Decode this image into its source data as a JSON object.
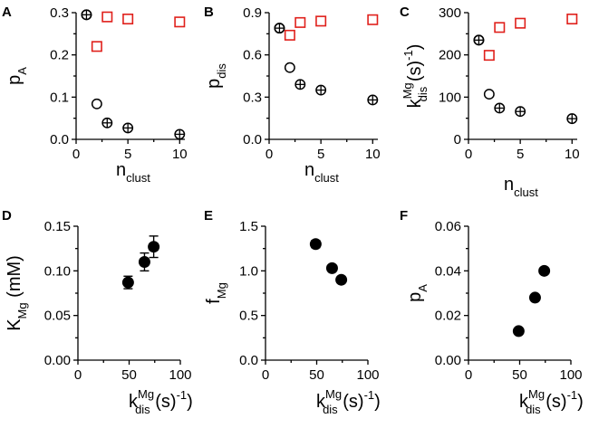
{
  "colors": {
    "black": "#000000",
    "red": "#e0201b"
  },
  "chart_data": [
    {
      "id": "A",
      "type": "scatter",
      "xlim": [
        0,
        10.5
      ],
      "ylim": [
        0,
        0.3
      ],
      "xticks": [
        "0",
        "5",
        "10"
      ],
      "xtick_values": [
        0,
        5,
        10
      ],
      "yticks": [
        "0.0",
        "0.1",
        "0.2",
        "0.3"
      ],
      "ytick_values": [
        0,
        0.1,
        0.2,
        0.3
      ],
      "xlabel": {
        "main": "n",
        "sub": "clust",
        "sup": "",
        "tail": ""
      },
      "ylabel": {
        "main": "p",
        "sub": "A",
        "sup": "",
        "tail": ""
      },
      "series": [
        {
          "name": "open circles",
          "marker": "circle-open",
          "color": "#000000",
          "x": [
            1,
            2
          ],
          "y": [
            0.295,
            0.084
          ]
        },
        {
          "name": "crossed circles",
          "marker": "circle-cross",
          "color": "#000000",
          "x": [
            1,
            3,
            5,
            10
          ],
          "y": [
            0.295,
            0.039,
            0.027,
            0.012
          ]
        },
        {
          "name": "red squares",
          "marker": "square-open",
          "color": "#e0201b",
          "x": [
            2,
            3,
            5,
            10
          ],
          "y": [
            0.22,
            0.29,
            0.285,
            0.278
          ]
        }
      ]
    },
    {
      "id": "B",
      "type": "scatter",
      "xlim": [
        0,
        10.5
      ],
      "ylim": [
        0,
        0.9
      ],
      "xticks": [
        "0",
        "5",
        "10"
      ],
      "xtick_values": [
        0,
        5,
        10
      ],
      "yticks": [
        "0.0",
        "0.3",
        "0.6",
        "0.9"
      ],
      "ytick_values": [
        0,
        0.3,
        0.6,
        0.9
      ],
      "xlabel": {
        "main": "n",
        "sub": "clust",
        "sup": "",
        "tail": ""
      },
      "ylabel": {
        "main": "p",
        "sub": "dis",
        "sup": "",
        "tail": ""
      },
      "series": [
        {
          "name": "open circles",
          "marker": "circle-open",
          "color": "#000000",
          "x": [
            1,
            2
          ],
          "y": [
            0.79,
            0.51
          ]
        },
        {
          "name": "crossed circles",
          "marker": "circle-cross",
          "color": "#000000",
          "x": [
            1,
            3,
            5,
            10
          ],
          "y": [
            0.79,
            0.39,
            0.35,
            0.28
          ]
        },
        {
          "name": "red squares",
          "marker": "square-open",
          "color": "#e0201b",
          "x": [
            2,
            3,
            5,
            10
          ],
          "y": [
            0.74,
            0.83,
            0.84,
            0.85
          ]
        }
      ]
    },
    {
      "id": "C",
      "type": "scatter",
      "xlim": [
        0,
        10.5
      ],
      "ylim": [
        0,
        300
      ],
      "xticks": [
        "0",
        "5",
        "10"
      ],
      "xtick_values": [
        0,
        5,
        10
      ],
      "yticks": [
        "0",
        "100",
        "200",
        "300"
      ],
      "ytick_values": [
        0,
        100,
        200,
        300
      ],
      "xlabel": {
        "main": "n",
        "sub": "clust",
        "sup": "",
        "tail": ""
      },
      "ylabel": {
        "main": "k",
        "sub": "dis",
        "sup": "Mg",
        "tail": " (s-1)"
      },
      "series": [
        {
          "name": "open circles",
          "marker": "circle-open",
          "color": "#000000",
          "x": [
            1,
            2
          ],
          "y": [
            235,
            107
          ]
        },
        {
          "name": "crossed circles",
          "marker": "circle-cross",
          "color": "#000000",
          "x": [
            1,
            3,
            5,
            10
          ],
          "y": [
            235,
            74,
            66,
            49
          ]
        },
        {
          "name": "red squares",
          "marker": "square-open",
          "color": "#e0201b",
          "x": [
            2,
            3,
            5,
            10
          ],
          "y": [
            199,
            265,
            275,
            285
          ]
        }
      ]
    },
    {
      "id": "D",
      "type": "scatter",
      "xlim": [
        0,
        100
      ],
      "ylim": [
        0,
        0.15
      ],
      "xticks": [
        "0",
        "50",
        "100"
      ],
      "xtick_values": [
        0,
        50,
        100
      ],
      "yticks": [
        "0.00",
        "0.05",
        "0.10",
        "0.15"
      ],
      "ytick_values": [
        0,
        0.05,
        0.1,
        0.15
      ],
      "xlabel": {
        "main": "k",
        "sub": "dis",
        "sup": "Mg",
        "tail": " (s-1)"
      },
      "ylabel": {
        "main": "K",
        "sub": "Mg",
        "sup": "",
        "tail": " (mM)"
      },
      "series": [
        {
          "name": "filled circles",
          "marker": "circle-filled",
          "color": "#000000",
          "x": [
            49,
            65,
            74
          ],
          "y": [
            0.087,
            0.11,
            0.127
          ],
          "yerr": [
            0.007,
            0.01,
            0.012
          ],
          "xerr": [
            0,
            4,
            4
          ]
        }
      ]
    },
    {
      "id": "E",
      "type": "scatter",
      "xlim": [
        0,
        100
      ],
      "ylim": [
        0,
        1.5
      ],
      "xticks": [
        "0",
        "50",
        "100"
      ],
      "xtick_values": [
        0,
        50,
        100
      ],
      "yticks": [
        "0.0",
        "0.5",
        "1.0",
        "1.5"
      ],
      "ytick_values": [
        0,
        0.5,
        1.0,
        1.5
      ],
      "xlabel": {
        "main": "k",
        "sub": "dis",
        "sup": "Mg",
        "tail": " (s-1)"
      },
      "ylabel": {
        "main": "f",
        "sub": "Mg",
        "sup": "",
        "tail": ""
      },
      "series": [
        {
          "name": "filled circles",
          "marker": "circle-filled",
          "color": "#000000",
          "x": [
            49,
            65,
            74
          ],
          "y": [
            1.3,
            1.03,
            0.9
          ],
          "yerr": [
            0.04,
            0,
            0
          ],
          "xerr": [
            0,
            0,
            0
          ]
        }
      ]
    },
    {
      "id": "F",
      "type": "scatter",
      "xlim": [
        0,
        100
      ],
      "ylim": [
        0,
        0.06
      ],
      "xticks": [
        "0",
        "50",
        "100"
      ],
      "xtick_values": [
        0,
        50,
        100
      ],
      "yticks": [
        "0.00",
        "0.02",
        "0.04",
        "0.06"
      ],
      "ytick_values": [
        0,
        0.02,
        0.04,
        0.06
      ],
      "xlabel": {
        "main": "k",
        "sub": "dis",
        "sup": "Mg",
        "tail": " (s-1)"
      },
      "ylabel": {
        "main": "p",
        "sub": "A",
        "sup": "",
        "tail": ""
      },
      "series": [
        {
          "name": "filled circles",
          "marker": "circle-filled",
          "color": "#000000",
          "x": [
            49,
            65,
            74
          ],
          "y": [
            0.013,
            0.028,
            0.04
          ],
          "yerr": [
            0,
            0,
            0
          ],
          "xerr": [
            0,
            0,
            0
          ]
        }
      ]
    }
  ]
}
